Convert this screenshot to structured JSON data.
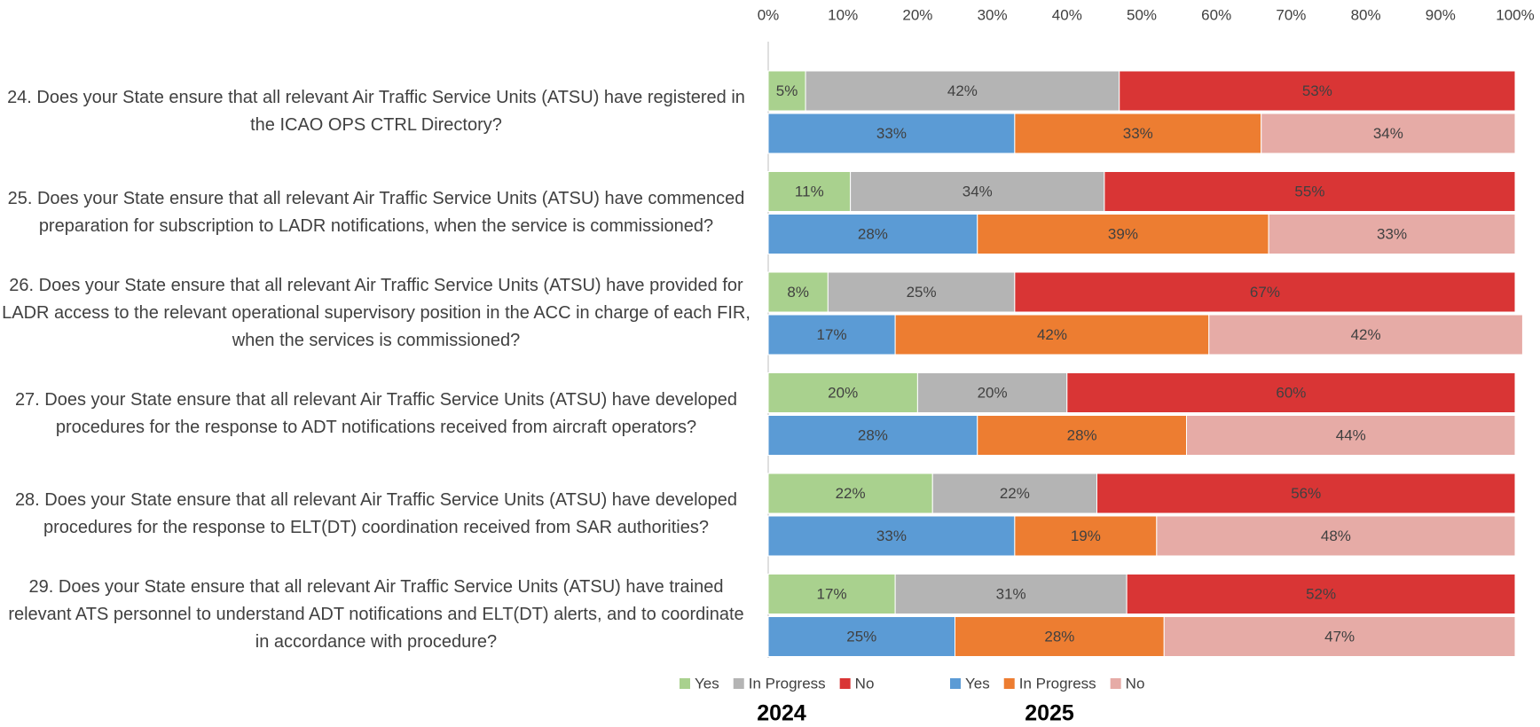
{
  "chart_data": {
    "type": "bar",
    "orientation": "horizontal",
    "stacked": true,
    "categories": [
      "24. Does your State ensure that all relevant Air Traffic Service Units (ATSU) have registered in the ICAO OPS CTRL Directory?",
      "25. Does your State ensure that all relevant Air Traffic Service Units (ATSU) have commenced preparation for subscription to LADR notifications, when the service is commissioned?",
      "26. Does your State ensure that all relevant Air Traffic Service Units (ATSU) have provided for LADR access to the relevant operational supervisory position in the ACC in charge of each FIR, when the services is commissioned?",
      "27. Does your State ensure that all relevant Air Traffic Service Units (ATSU) have developed procedures for the response to ADT notifications received from aircraft operators?",
      "28. Does your State ensure that all relevant Air Traffic Service Units (ATSU) have developed procedures for the response to ELT(DT) coordination received from SAR authorities?",
      "29. Does your State ensure that all relevant Air Traffic Service Units (ATSU) have trained relevant ATS personnel to understand ADT notifications and ELT(DT) alerts, and to coordinate in accordance with procedure?"
    ],
    "groups": [
      {
        "name": "2024",
        "series": [
          {
            "name": "Yes",
            "color": "#a9d18e",
            "values": [
              5,
              11,
              8,
              20,
              22,
              17
            ],
            "value_labels": [
              "5%",
              "11%",
              "8%",
              "20%",
              "22%",
              "17%"
            ]
          },
          {
            "name": "In Progress",
            "color": "#b4b4b4",
            "values": [
              42,
              34,
              25,
              20,
              22,
              31
            ],
            "value_labels": [
              "42%",
              "34%",
              "25%",
              "20%",
              "22%",
              "31%"
            ]
          },
          {
            "name": "No",
            "color": "#d93535",
            "values": [
              53,
              55,
              67,
              60,
              56,
              52
            ],
            "value_labels": [
              "53%",
              "55%",
              "67%",
              "60%",
              "56%",
              "52%"
            ]
          }
        ]
      },
      {
        "name": "2025",
        "series": [
          {
            "name": "Yes",
            "color": "#5b9bd5",
            "values": [
              33,
              28,
              17,
              28,
              33,
              25
            ],
            "value_labels": [
              "33%",
              "28%",
              "17%",
              "28%",
              "33%",
              "25%"
            ]
          },
          {
            "name": "In Progress",
            "color": "#ed7d31",
            "values": [
              33,
              39,
              42,
              28,
              19,
              28
            ],
            "value_labels": [
              "33%",
              "39%",
              "42%",
              "28%",
              "19%",
              "28%"
            ]
          },
          {
            "name": "No",
            "color": "#e6aba6",
            "values": [
              34,
              33,
              42,
              44,
              48,
              47
            ],
            "value_labels": [
              "34%",
              "33%",
              "42%",
              "44%",
              "48%",
              "47%"
            ]
          }
        ]
      }
    ],
    "xlim": [
      0,
      100
    ],
    "xticks": [
      {
        "value": 0,
        "label": "0%"
      },
      {
        "value": 10,
        "label": "10%"
      },
      {
        "value": 20,
        "label": "20%"
      },
      {
        "value": 30,
        "label": "30%"
      },
      {
        "value": 40,
        "label": "40%"
      },
      {
        "value": 50,
        "label": "50%"
      },
      {
        "value": 60,
        "label": "60%"
      },
      {
        "value": 70,
        "label": "70%"
      },
      {
        "value": 80,
        "label": "80%"
      },
      {
        "value": 90,
        "label": "90%"
      },
      {
        "value": 100,
        "label": "100%"
      }
    ],
    "grid": false,
    "legend": "bottom"
  }
}
